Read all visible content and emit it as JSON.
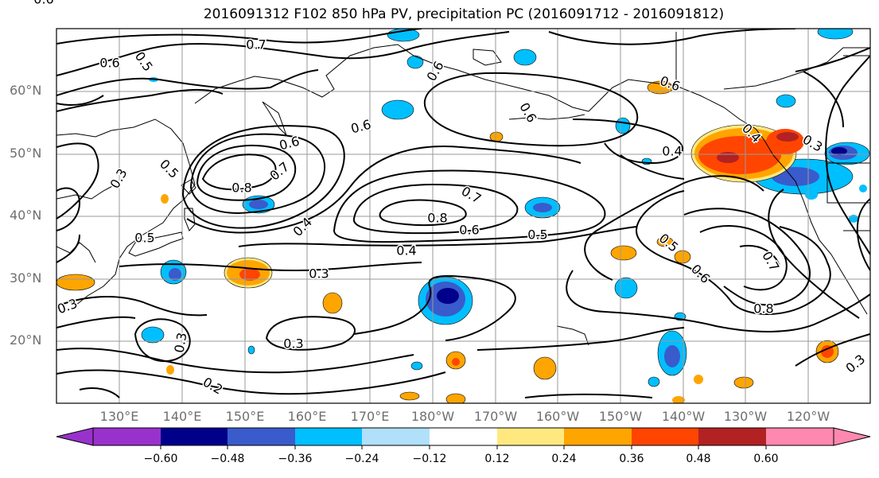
{
  "title": "2016091312 F102 850 hPa PV, precipitation PC (2016091712 - 2016091812)",
  "lat_labels": [
    "60°N",
    "50°N",
    "40°N",
    "30°N",
    "20°N"
  ],
  "lon_labels": [
    "130°E",
    "140°E",
    "150°E",
    "160°E",
    "170°E",
    "180°W",
    "170°W",
    "160°W",
    "150°W",
    "140°W",
    "130°W",
    "120°W"
  ],
  "colorbar": {
    "ticks": [
      "−0.60",
      "−0.48",
      "−0.36",
      "−0.24",
      "−0.12",
      "0.12",
      "0.24",
      "0.36",
      "0.48",
      "0.60"
    ],
    "colors": [
      "#9932cc",
      "#00008b",
      "#3a5bcb",
      "#00bfff",
      "#b0e0fa",
      "#ffffff",
      "#ffe97f",
      "#ffa500",
      "#ff4500",
      "#b22222",
      "#ff88b0"
    ]
  },
  "contour_labels": [
    "0.7",
    "0.6",
    "0.5",
    "0.6",
    "0.6",
    "0.6",
    "0.6",
    "0.4",
    "0.3",
    "0.6",
    "0.7",
    "0.8",
    "0.5",
    "0.4",
    "0.7",
    "0.8",
    "0.6",
    "0.5",
    "0.4",
    "0.3",
    "0.3",
    "0.5",
    "0.5",
    "0.6",
    "0.7",
    "0.8",
    "0.3",
    "0.2",
    "0.3",
    "0.6",
    "0.3",
    "0.4",
    "0.3"
  ]
}
